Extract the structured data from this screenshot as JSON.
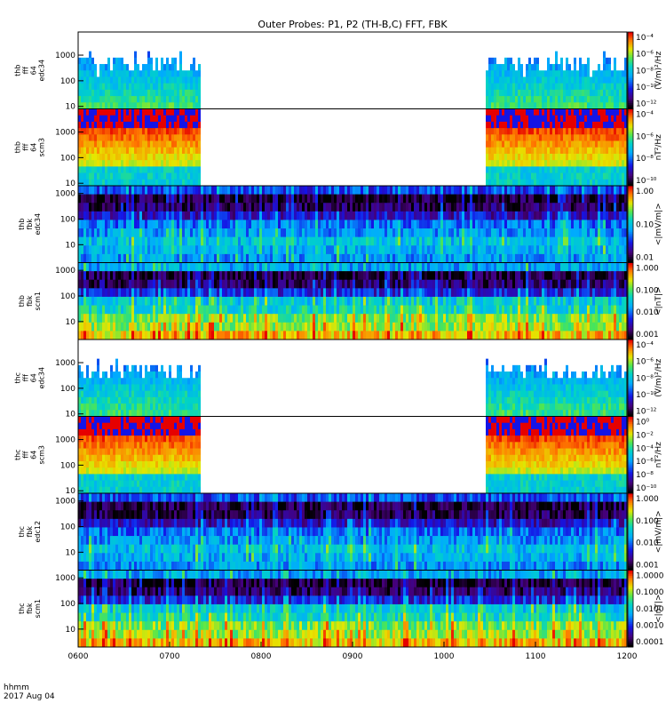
{
  "chart_data": {
    "type": "heatmap",
    "title": "Outer Probes: P1, P2 (TH-B,C) FFT, FBK",
    "x_axis": {
      "label": "hhmm",
      "date": "2017 Aug 04",
      "range": [
        "0600",
        "1200"
      ],
      "ticks": [
        "0600",
        "0700",
        "0800",
        "0900",
        "1000",
        "1100",
        "1200"
      ]
    },
    "data_gap": {
      "start": "0722",
      "end": "1027"
    },
    "panels": [
      {
        "label_lines": [
          "thb",
          "fff",
          "64",
          "edc34"
        ],
        "product": "fft",
        "y_ticks": [
          "1000",
          "100",
          "10"
        ],
        "y_range": [
          8,
          8000
        ],
        "colorbar_label": "(V/m)²/Hz",
        "colorbar_ticks": [
          "10⁻⁴",
          "10⁻⁶",
          "10⁻⁸",
          "10⁻¹⁰",
          "10⁻¹²"
        ],
        "gap": true
      },
      {
        "label_lines": [
          "thb",
          "fff",
          "64",
          "scm3"
        ],
        "product": "fft",
        "y_ticks": [
          "1000",
          "100",
          "10"
        ],
        "y_range": [
          8,
          8000
        ],
        "colorbar_label": "nT²/Hz",
        "colorbar_ticks": [
          "10⁻⁴",
          "10⁻⁶",
          "10⁻⁸",
          "10⁻¹⁰"
        ],
        "gap": true
      },
      {
        "label_lines": [
          "thb",
          "fbk",
          "edc34"
        ],
        "product": "fbk",
        "y_ticks": [
          "1000",
          "100",
          "10"
        ],
        "y_range": [
          2,
          2000
        ],
        "colorbar_label": "<|mV/m|>",
        "colorbar_ticks": [
          "1.00",
          "0.10",
          "0.01"
        ],
        "gap": false
      },
      {
        "label_lines": [
          "thb",
          "fbk",
          "scm1"
        ],
        "product": "fbk",
        "y_ticks": [
          "1000",
          "100",
          "10"
        ],
        "y_range": [
          2,
          2000
        ],
        "colorbar_label": "<|nT|>",
        "colorbar_ticks": [
          "1.000",
          "0.100",
          "0.010",
          "0.001"
        ],
        "gap": false
      },
      {
        "label_lines": [
          "thc",
          "fff",
          "64",
          "edc34"
        ],
        "product": "fft",
        "y_ticks": [
          "1000",
          "100",
          "10"
        ],
        "y_range": [
          8,
          8000
        ],
        "colorbar_label": "(V/m)²/Hz",
        "colorbar_ticks": [
          "10⁻⁴",
          "10⁻⁶",
          "10⁻⁸",
          "10⁻¹⁰",
          "10⁻¹²"
        ],
        "gap": true
      },
      {
        "label_lines": [
          "thc",
          "fff",
          "64",
          "scm3"
        ],
        "product": "fft",
        "y_ticks": [
          "1000",
          "100",
          "10"
        ],
        "y_range": [
          8,
          8000
        ],
        "colorbar_label": "nT²/Hz",
        "colorbar_ticks": [
          "10⁰",
          "10⁻²",
          "10⁻⁴",
          "10⁻⁶",
          "10⁻⁸",
          "10⁻¹⁰"
        ],
        "gap": true
      },
      {
        "label_lines": [
          "thc",
          "fbk",
          "edc12"
        ],
        "product": "fbk",
        "y_ticks": [
          "1000",
          "100",
          "10"
        ],
        "y_range": [
          2,
          2000
        ],
        "colorbar_label": "<|mV/m|>",
        "colorbar_ticks": [
          "1.000",
          "0.100",
          "0.010",
          "0.001"
        ],
        "gap": false
      },
      {
        "label_lines": [
          "thc",
          "fbk",
          "scm1"
        ],
        "product": "fbk",
        "y_ticks": [
          "1000",
          "100",
          "10"
        ],
        "y_range": [
          2,
          2000
        ],
        "colorbar_label": "<|nT|>",
        "colorbar_ticks": [
          "1.0000",
          "0.1000",
          "0.0100",
          "0.0010",
          "0.0001"
        ],
        "gap": false
      }
    ]
  }
}
